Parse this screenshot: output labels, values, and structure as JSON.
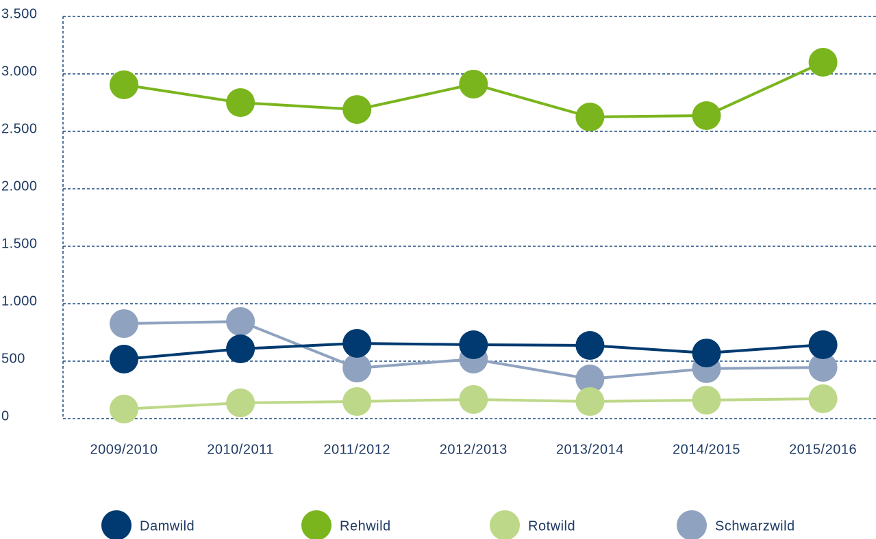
{
  "chart_data": {
    "type": "line",
    "categories": [
      "2009/2010",
      "2010/2011",
      "2011/2012",
      "2012/2013",
      "2013/2014",
      "2014/2015",
      "2015/2016"
    ],
    "series": [
      {
        "name": "Damwild",
        "color": "#003a70",
        "values": [
          518,
          607,
          655,
          643,
          637,
          571,
          643
        ]
      },
      {
        "name": "Rehwild",
        "color": "#7ab51d",
        "values": [
          2905,
          2750,
          2690,
          2911,
          2625,
          2637,
          3101
        ]
      },
      {
        "name": "Rotwild",
        "color": "#bdd888",
        "values": [
          83,
          137,
          149,
          167,
          149,
          161,
          173
        ]
      },
      {
        "name": "Schwarzwild",
        "color": "#8fa3c0",
        "values": [
          827,
          845,
          440,
          518,
          345,
          435,
          446
        ]
      }
    ],
    "ylim": [
      0,
      3500
    ],
    "yticks": [
      0,
      500,
      {
        "value": 1000,
        "label": "1.000"
      },
      {
        "value": 1500,
        "label": "1.500"
      },
      {
        "value": 2000,
        "label": "2.000"
      },
      {
        "value": 2500,
        "label": "2.500"
      },
      {
        "value": 3000,
        "label": "3.000"
      },
      {
        "value": 3500,
        "label": "3.500"
      }
    ],
    "grid": true,
    "legend": "bottom"
  }
}
